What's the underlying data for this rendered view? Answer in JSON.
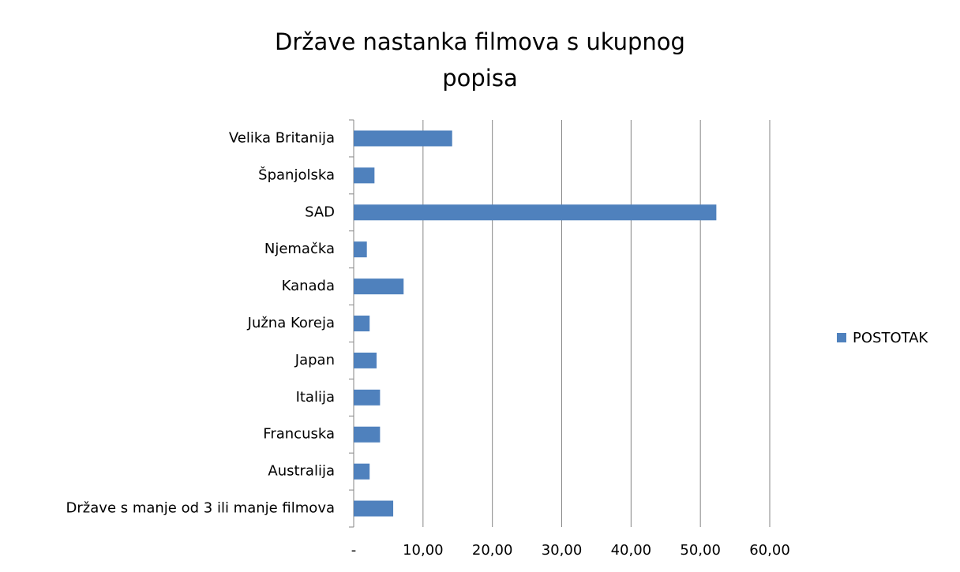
{
  "chart_data": {
    "type": "bar",
    "orientation": "horizontal",
    "title": "Države nastanka filmova s ukupnog popisa",
    "categories": [
      "Velika Britanija",
      "Španjolska",
      "SAD",
      "Njemačka",
      "Kanada",
      "Južna Koreja",
      "Japan",
      "Italija",
      "Francuska",
      "Australija",
      "Države s manje od 3 ili manje filmova"
    ],
    "series": [
      {
        "name": "POSTOTAK",
        "color": "#4f81bd",
        "values": [
          14.2,
          3.0,
          52.3,
          1.9,
          7.2,
          2.3,
          3.3,
          3.8,
          3.8,
          2.3,
          5.7
        ]
      }
    ],
    "xlim": [
      0,
      60
    ],
    "xticks": [
      {
        "value": 0,
        "label": "-"
      },
      {
        "value": 10,
        "label": "10,00"
      },
      {
        "value": 20,
        "label": "20,00"
      },
      {
        "value": 30,
        "label": "30,00"
      },
      {
        "value": 40,
        "label": "40,00"
      },
      {
        "value": 50,
        "label": "50,00"
      },
      {
        "value": 60,
        "label": "60,00"
      }
    ],
    "grid": true,
    "legend": "right"
  }
}
